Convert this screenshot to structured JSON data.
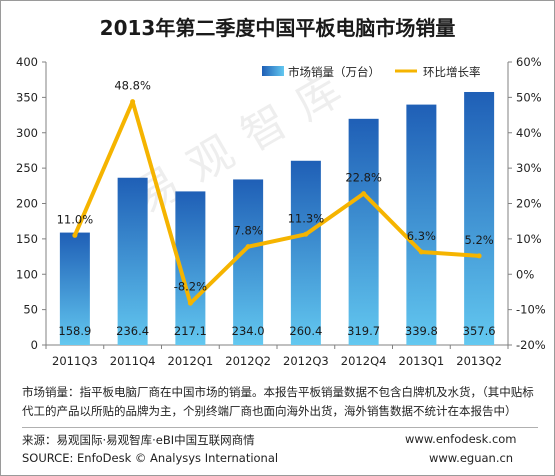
{
  "title": "2013年第二季度中国平板电脑市场销量",
  "watermark": "易观智库",
  "note": "市场销量：指平板电脑厂商在中国市场的销量。本报告平板销量数据不包含白牌机及水货，（其中贴标代工的产品以所贴的品牌为主，个别终端厂商也面向海外出货，海外销售数据不统计在本报告中）",
  "source": {
    "cn": "来源：易观国际·易观智库·eBI中国互联网商情",
    "en": "SOURCE: EnfoDesk © Analysys International",
    "site1": "www.enfodesk.com",
    "site2": "www.eguan.cn"
  },
  "colors": {
    "bar_top": "#1f5fb6",
    "bar_bottom": "#63c8f0",
    "line": "#f5b400"
  },
  "chart_data": {
    "type": "bar",
    "categories": [
      "2011Q3",
      "2011Q4",
      "2012Q1",
      "2012Q2",
      "2012Q3",
      "2012Q4",
      "2013Q1",
      "2013Q2"
    ],
    "series": [
      {
        "name": "市场销量（万台）",
        "type": "bar",
        "axis": "left",
        "values": [
          158.9,
          236.4,
          217.1,
          234.0,
          260.4,
          319.7,
          339.8,
          357.6
        ],
        "labels": [
          "158.9",
          "236.4",
          "217.1",
          "234.0",
          "260.4",
          "319.7",
          "339.8",
          "357.6"
        ]
      },
      {
        "name": "环比增长率",
        "type": "line",
        "axis": "right",
        "values": [
          11.0,
          48.8,
          -8.2,
          7.8,
          11.3,
          22.8,
          6.3,
          5.2
        ],
        "labels": [
          "11.0%",
          "48.8%",
          "-8.2%",
          "7.8%",
          "11.3%",
          "22.8%",
          "6.3%",
          "5.2%"
        ]
      }
    ],
    "y_left": {
      "min": 0,
      "max": 400,
      "ticks": [
        "0",
        "50",
        "100",
        "150",
        "200",
        "250",
        "300",
        "350",
        "400"
      ]
    },
    "y_right": {
      "min": -20,
      "max": 60,
      "ticks": [
        "-20%",
        "-10%",
        "0%",
        "10%",
        "20%",
        "30%",
        "40%",
        "50%",
        "60%"
      ]
    },
    "grid": false,
    "legend_position": "top-right"
  }
}
